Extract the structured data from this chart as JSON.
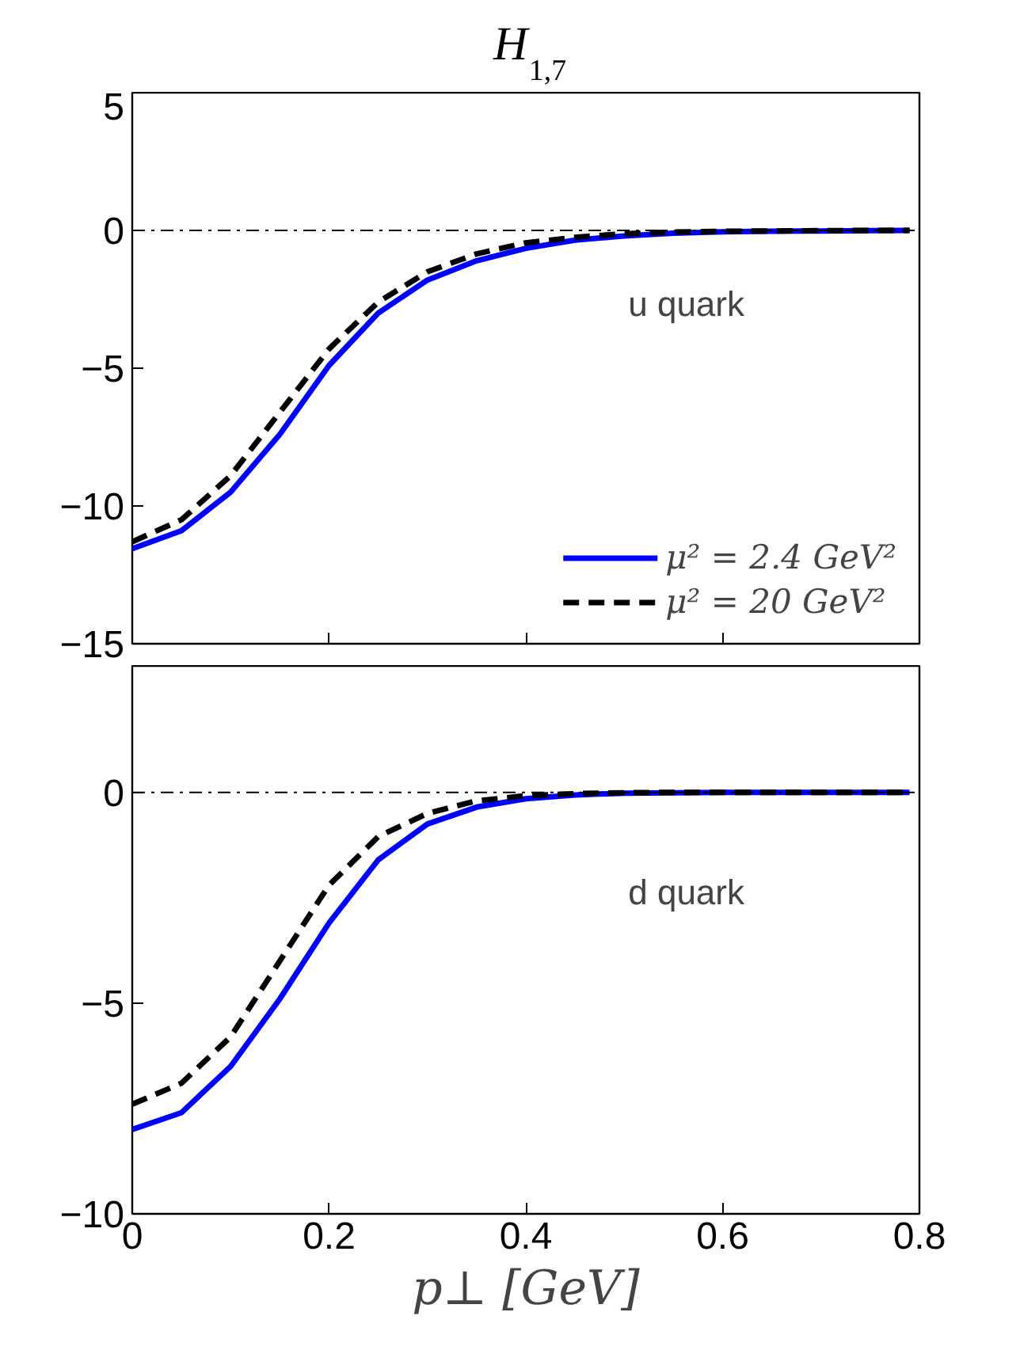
{
  "chart_data": [
    {
      "type": "line",
      "title": "H$_{1,7}$",
      "x": [
        0,
        0.05,
        0.1,
        0.15,
        0.2,
        0.25,
        0.3,
        0.35,
        0.4,
        0.45,
        0.5,
        0.55,
        0.6,
        0.65,
        0.7,
        0.75,
        0.79
      ],
      "series": [
        {
          "name": "μ² = 2.4 GeV²",
          "color": "#0000ff",
          "line_style": "solid",
          "values": [
            -11.55,
            -10.9,
            -9.5,
            -7.4,
            -4.9,
            -3.0,
            -1.8,
            -1.1,
            -0.65,
            -0.35,
            -0.2,
            -0.1,
            -0.05,
            -0.03,
            -0.02,
            -0.01,
            0
          ]
        },
        {
          "name": "μ² = 20 GeV²",
          "color": "#000000",
          "line_style": "dashed",
          "values": [
            -11.3,
            -10.5,
            -8.9,
            -6.6,
            -4.3,
            -2.6,
            -1.5,
            -0.85,
            -0.45,
            -0.25,
            -0.12,
            -0.06,
            -0.03,
            -0.02,
            -0.01,
            0,
            0
          ]
        }
      ],
      "xlim": [
        0,
        0.8
      ],
      "xticks": [
        0,
        0.2,
        0.4,
        0.6,
        0.8
      ],
      "ylim": [
        -15,
        5
      ],
      "yticks": [
        -15,
        -10,
        -5,
        0,
        5
      ],
      "tick_labels": "y",
      "legend": "bottom right",
      "ref_lines": [
        {
          "axis": "y",
          "value": 0,
          "color": "#000000",
          "line_style": "dashdot"
        }
      ],
      "annotations": [
        "u quark"
      ]
    },
    {
      "type": "line",
      "xlabel": "p⊥ [GeV]",
      "x": [
        0,
        0.05,
        0.1,
        0.15,
        0.2,
        0.25,
        0.3,
        0.35,
        0.4,
        0.45,
        0.5,
        0.55,
        0.6,
        0.65,
        0.7,
        0.75,
        0.79
      ],
      "series": [
        {
          "color": "#0000ff",
          "line_style": "solid",
          "values": [
            -8.0,
            -7.6,
            -6.5,
            -4.9,
            -3.1,
            -1.6,
            -0.75,
            -0.35,
            -0.15,
            -0.06,
            -0.02,
            -0.01,
            0,
            0,
            0,
            0,
            0
          ]
        },
        {
          "color": "#000000",
          "line_style": "dashed",
          "values": [
            -7.4,
            -6.9,
            -5.8,
            -4.0,
            -2.2,
            -1.05,
            -0.5,
            -0.2,
            -0.08,
            -0.03,
            -0.01,
            0,
            0,
            0,
            0,
            0,
            0
          ]
        }
      ],
      "xlim": [
        0,
        0.8
      ],
      "xticks": [
        0,
        0.2,
        0.4,
        0.6,
        0.8
      ],
      "ylim": [
        -10,
        3
      ],
      "yticks": [
        -10,
        -5,
        0
      ],
      "ref_lines": [
        {
          "axis": "y",
          "value": 0,
          "color": "#000000",
          "line_style": "dashdot"
        }
      ],
      "annotations": [
        "d quark"
      ]
    }
  ]
}
